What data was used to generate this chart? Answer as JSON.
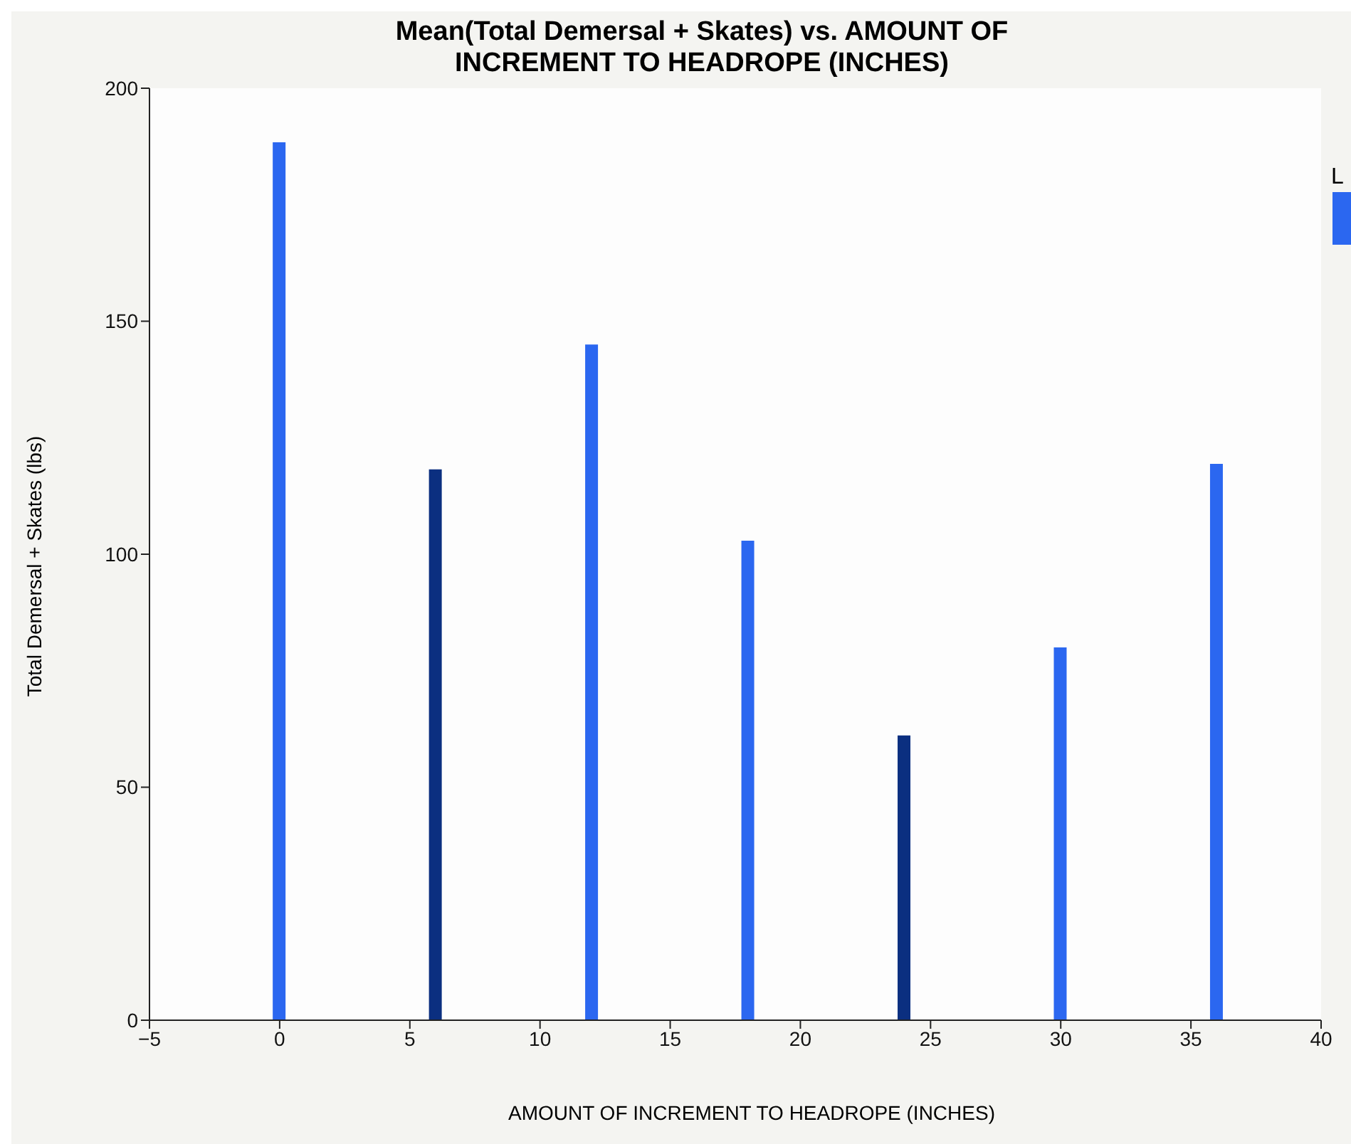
{
  "chart_data": {
    "type": "bar",
    "title": "Mean(Total Demersal + Skates) vs. AMOUNT OF INCREMENT TO HEADROPE (INCHES)",
    "xlabel": "AMOUNT OF INCREMENT TO HEADROPE (INCHES)",
    "ylabel": "Total Demersal + Skates (lbs)",
    "legend_title": "L",
    "x": [
      0,
      6,
      12,
      18,
      24,
      30,
      36
    ],
    "series": [
      {
        "color": "#2b67f0",
        "values": [
          188.4,
          118.2,
          145.0,
          102.9,
          61.1,
          80.0,
          119.4
        ],
        "colors": [
          "#2b67f0",
          "#0b2f80",
          "#2b67f0",
          "#2b67f0",
          "#0b2f80",
          "#2b67f0",
          "#2b67f0"
        ]
      }
    ],
    "xlim": [
      -5,
      40
    ],
    "xticks": [
      -5,
      0,
      5,
      10,
      15,
      20,
      25,
      30,
      35,
      40
    ],
    "ylim": [
      0,
      200
    ],
    "yticks": [
      0,
      50,
      100,
      150,
      200
    ],
    "grid": false
  }
}
